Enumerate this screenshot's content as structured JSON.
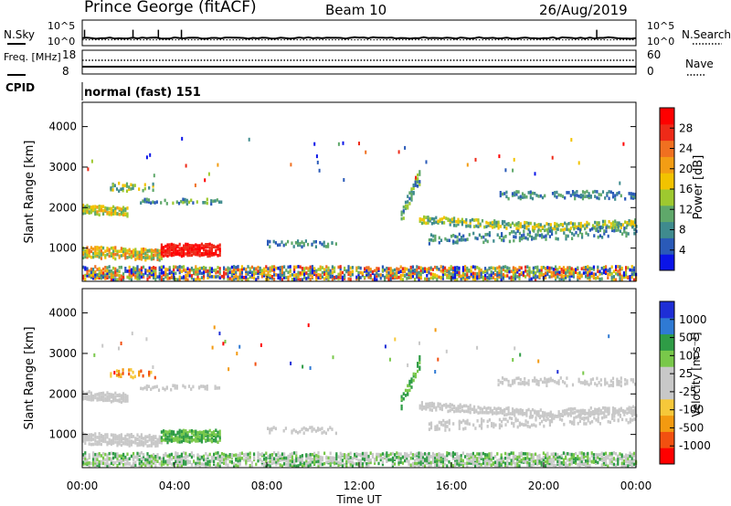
{
  "header": {
    "station": "Prince George (fitACF)",
    "beam": "Beam 10",
    "date": "26/Aug/2019"
  },
  "colors": {
    "power": [
      "#0a14e8",
      "#2a5ab8",
      "#3f8b8e",
      "#5fa86a",
      "#9ec92f",
      "#f2c300",
      "#f39d14",
      "#f07020",
      "#ee2a18",
      "#ff0000"
    ],
    "velocity": [
      "#ff0000",
      "#f25010",
      "#f39a10",
      "#f6c83a",
      "#c8c8c8",
      "#c8c8c8",
      "#79c84a",
      "#2f9c46",
      "#2f7ad4",
      "#1e2ed6"
    ]
  },
  "chart_data": [
    {
      "type": "line",
      "name": "status-sky-search",
      "left_label": "N.Sky",
      "right_label": "N.Search",
      "left_ticks": [
        "10^5",
        "10^0"
      ],
      "right_ticks": [
        "10^5",
        "10^0"
      ],
      "x_range_hours": [
        0,
        24
      ],
      "sky_level": 0.3,
      "search_level": 0.25,
      "spikes_hours": [
        0.1,
        2.2,
        3.3,
        4.3,
        22.3
      ]
    },
    {
      "type": "line",
      "name": "status-freq-nave",
      "left_label": "Freq. [MHz]",
      "right_label": "Nave",
      "left_ticks": [
        "18",
        "8"
      ],
      "right_ticks": [
        "60",
        "0"
      ],
      "freq_MHz": 10.5,
      "nave": 13
    },
    {
      "type": "text",
      "name": "cpid",
      "label": "CPID",
      "value": "normal (fast) 151"
    },
    {
      "type": "heatmap",
      "name": "power",
      "ylabel": "Slant Range [km]",
      "y_ticks": [
        1000,
        2000,
        3000,
        4000
      ],
      "ylim": [
        180,
        4600
      ],
      "colorbar_label": "Power [dB]",
      "colorbar_ticks": [
        "28",
        "24",
        "20",
        "16",
        "12",
        "8",
        "4"
      ]
    },
    {
      "type": "heatmap",
      "name": "velocity",
      "ylabel": "Slant Range [km]",
      "y_ticks": [
        1000,
        2000,
        3000,
        4000
      ],
      "ylim": [
        180,
        4600
      ],
      "xlabel": "Time UT",
      "x_ticks": [
        "00:00",
        "04:00",
        "08:00",
        "12:00",
        "16:00",
        "20:00",
        "00:00"
      ],
      "colorbar_label": "Velocity [m s⁻¹]",
      "colorbar_ticks": [
        "1000",
        "500",
        "100",
        "25",
        "-25",
        "-100",
        "-500",
        "-1000"
      ]
    }
  ]
}
